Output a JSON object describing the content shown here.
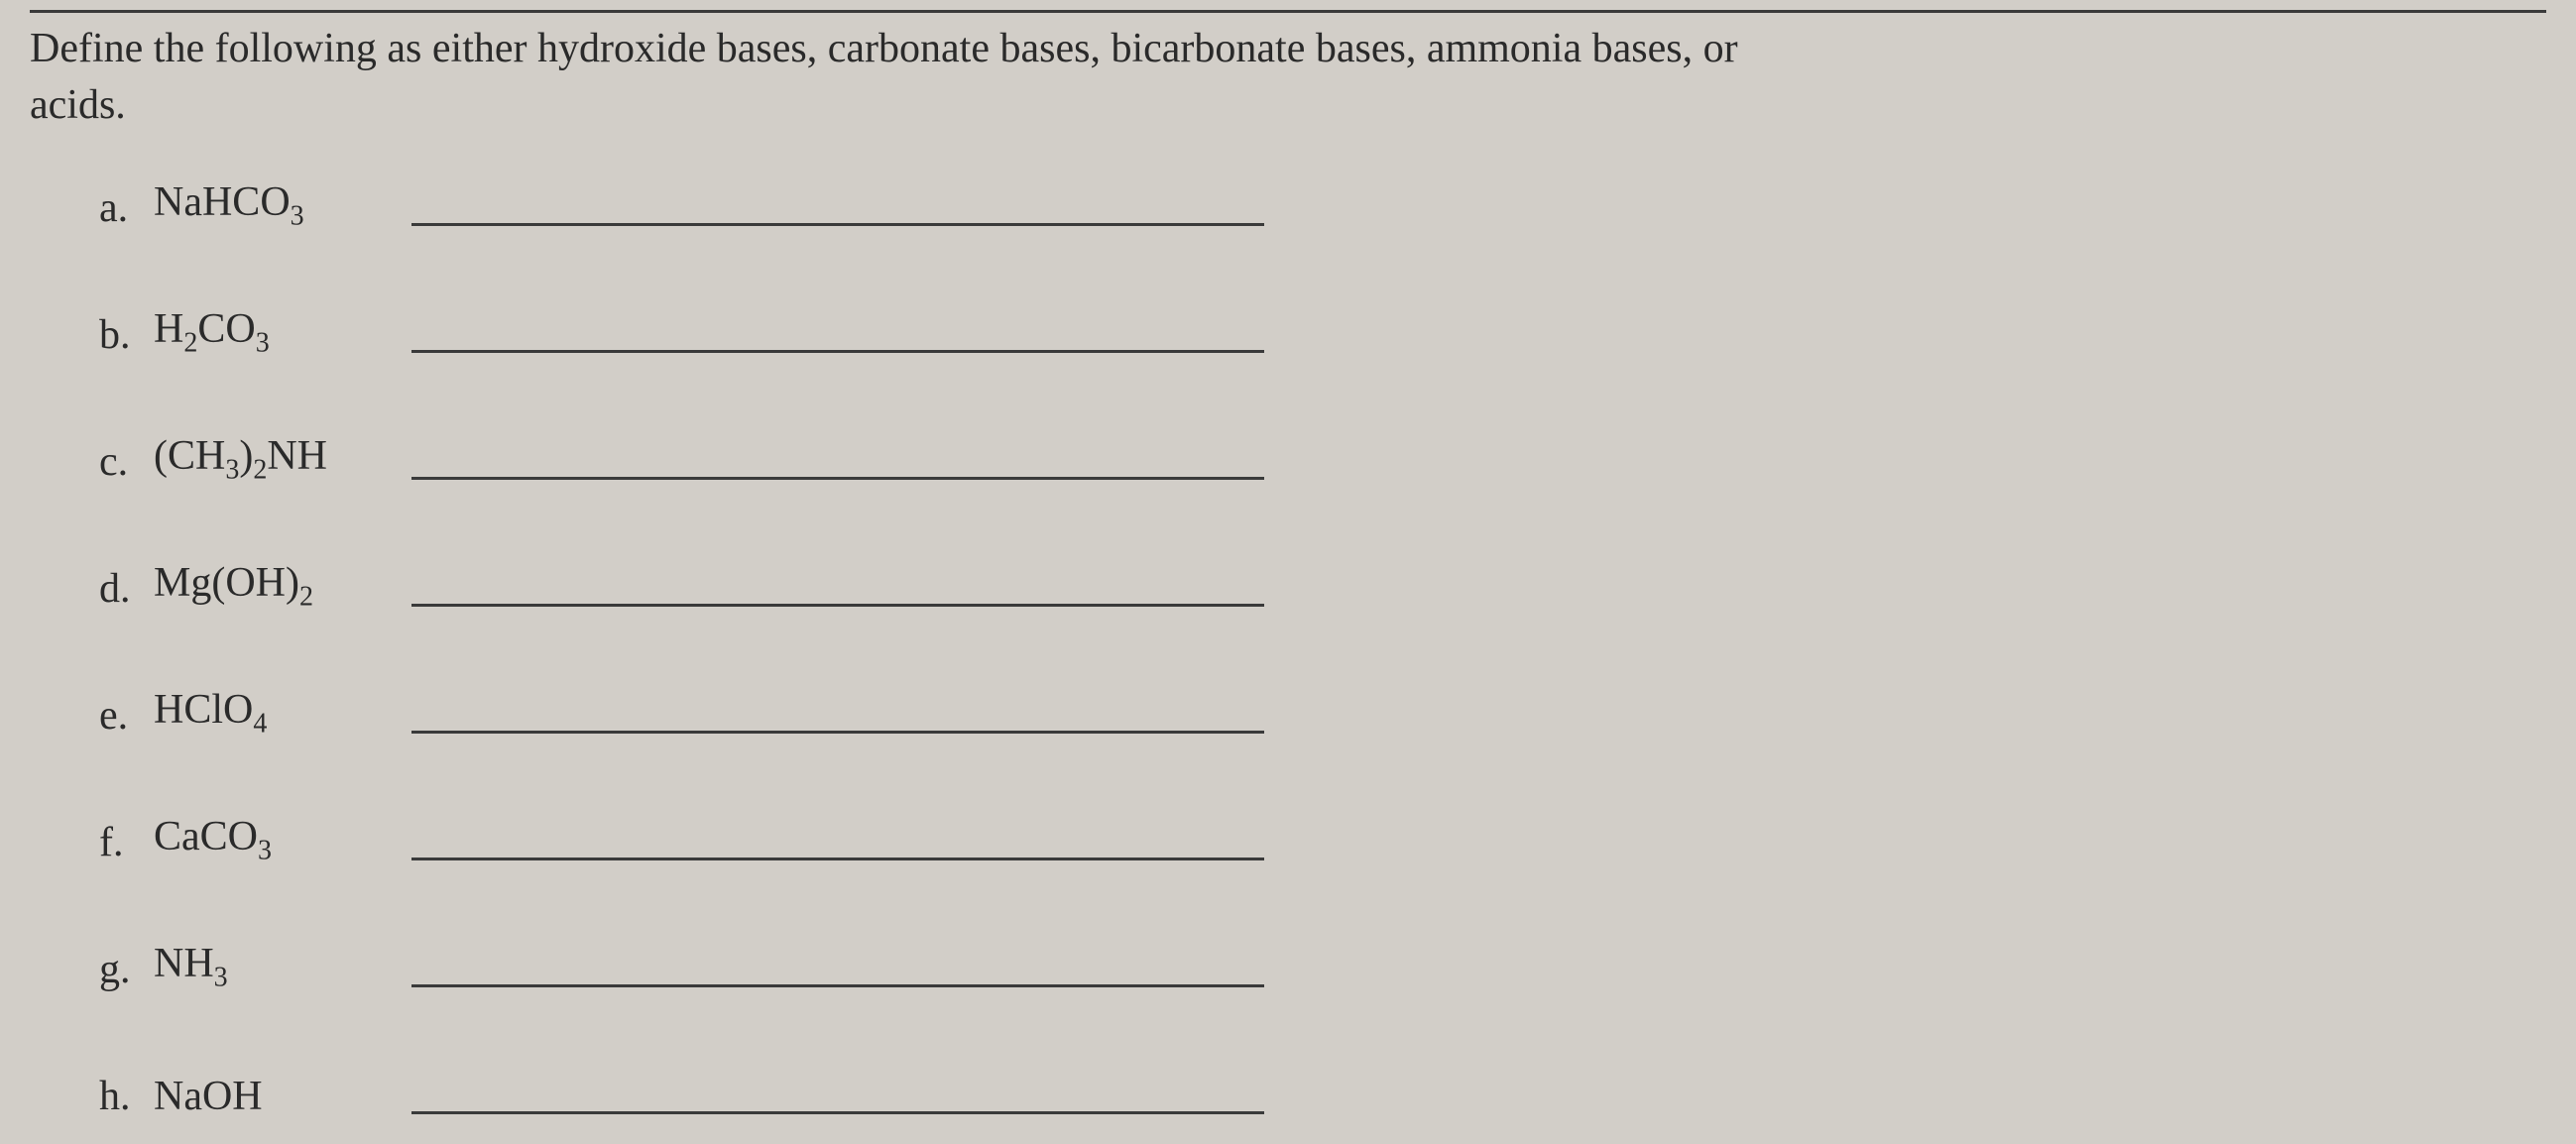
{
  "question": {
    "line1": "Define the following as either hydroxide bases, carbonate bases, bicarbonate bases, ammonia bases, or",
    "line2": "acids."
  },
  "items": [
    {
      "letter": "a.",
      "formula_html": "NaHCO<sub>3</sub>"
    },
    {
      "letter": "b.",
      "formula_html": "H<sub>2</sub>CO<sub>3</sub>"
    },
    {
      "letter": "c.",
      "formula_html": "(CH<sub>3</sub>)<sub>2</sub>NH"
    },
    {
      "letter": "d.",
      "formula_html": "Mg(OH)<sub>2</sub>"
    },
    {
      "letter": "e.",
      "formula_html": "HClO<sub>4</sub>"
    },
    {
      "letter": "f.",
      "formula_html": "CaCO<sub>3</sub>"
    },
    {
      "letter": "g.",
      "formula_html": "NH<sub>3</sub>"
    },
    {
      "letter": "h.",
      "formula_html": "NaOH"
    }
  ],
  "styling": {
    "background_color": "#d2cec8",
    "text_color": "#2a2a2a",
    "rule_color": "#3a3a3a",
    "font_family": "Georgia, Times New Roman, serif",
    "question_fontsize": 42,
    "item_fontsize": 42,
    "sub_fontsize": 28,
    "answer_line_width": 860,
    "item_spacing": 68,
    "left_indent": 70
  }
}
